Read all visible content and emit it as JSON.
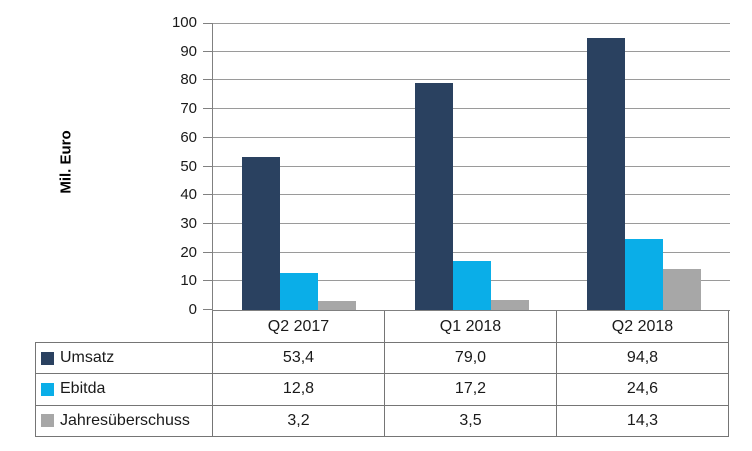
{
  "chart_data": {
    "type": "bar",
    "title": "",
    "ylabel": "Mil. Euro",
    "xlabel": "",
    "categories": [
      "Q2 2017",
      "Q1 2018",
      "Q2 2018"
    ],
    "series": [
      {
        "name": "Umsatz",
        "color": "#2a4160",
        "values": [
          53.4,
          79.0,
          94.8
        ],
        "display_values": [
          "53,4",
          "79,0",
          "94,8"
        ]
      },
      {
        "name": "Ebitda",
        "color": "#0aaee8",
        "values": [
          12.8,
          17.2,
          24.6
        ],
        "display_values": [
          "12,8",
          "17,2",
          "24,6"
        ]
      },
      {
        "name": "Jahresüberschuss",
        "color": "#a7a7a7",
        "values": [
          3.2,
          3.5,
          14.3
        ],
        "display_values": [
          "3,2",
          "3,5",
          "14,3"
        ]
      }
    ],
    "ylim": [
      0,
      100
    ],
    "yticks": [
      0,
      10,
      20,
      30,
      40,
      50,
      60,
      70,
      80,
      90,
      100
    ],
    "grid": "horizontal",
    "legend_position": "data-table-left",
    "data_table": true
  },
  "colors": {
    "background": "#ffffff",
    "gridline": "#9a9a9a",
    "axis_line": "#808080",
    "table_border": "#757575",
    "text": "#1a1a1a",
    "bar_umsatz": "#2a4160",
    "bar_ebitda": "#0aaee8",
    "bar_jahresueberschuss": "#a7a7a7"
  }
}
